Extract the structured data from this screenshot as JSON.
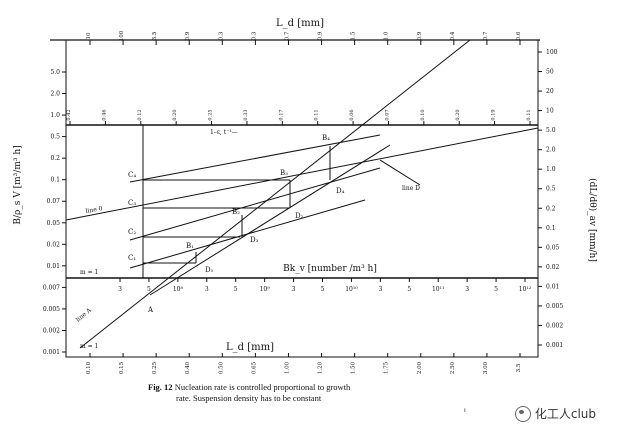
{
  "chart_data": {
    "type": "line",
    "top_axis": {
      "label": "L_d [mm]",
      "ticks_top": [
        "10",
        "100",
        "3.5",
        "0.9",
        "0.3",
        "0.3",
        "0.7",
        "0.9",
        "1.5",
        "1.0",
        "0.9",
        "0.4",
        "0.7",
        "0.6"
      ],
      "ticks_inner": [
        "0.42",
        "0.46",
        "0.12",
        "0.20",
        "0.25",
        "0.33",
        "0.17",
        "0.11",
        "0.06",
        "0.07",
        "0.10",
        "0.20",
        "0.19",
        "0.11"
      ]
    },
    "bottom_axis": {
      "label": "L_d [mm]",
      "ticks": [
        "0.10",
        "0.15",
        "0.25",
        "0.40",
        "0.50",
        "0.65",
        "1.00",
        "1.20",
        "1.50",
        "1.75",
        "2.00",
        "2.50",
        "3.00",
        "3.5"
      ]
    },
    "middle_axis": {
      "label": "Bk_v [number /m³ h]",
      "ticks": [
        "3",
        "5",
        "10⁸",
        "3",
        "5",
        "10⁹",
        "3",
        "5",
        "10¹⁰",
        "3",
        "5",
        "10¹¹",
        "3",
        "5",
        "10¹²"
      ]
    },
    "left_axis": {
      "label": "B/ρ_s V [m³/m³ h]",
      "ticks": [
        "5.0",
        "2.0",
        "1.0",
        "0.5",
        "0.2",
        "0.1",
        "0.07",
        "0.05",
        "0.02",
        "0.01",
        "0.007",
        "0.005",
        "0.002",
        "0.001"
      ]
    },
    "right_axis": {
      "label": "(dL/dθ)_av [mm/h]",
      "ticks_outer": [
        "100",
        "50",
        "20",
        "10",
        "5.0",
        "2.0",
        "1.0",
        "0.5",
        "0.2",
        "0.1",
        "0.05",
        "0.02",
        "0.01",
        "0.005",
        "0.002",
        "0.001"
      ]
    },
    "point_labels": [
      "B₄",
      "B₃",
      "B₂",
      "B₁",
      "C₄",
      "C₃",
      "C₂",
      "C₁",
      "D₁",
      "D₂",
      "D₃",
      "D₄",
      "A"
    ],
    "line_labels": [
      "line D",
      "line 0",
      "line A",
      "m = 1",
      "m = 1",
      "1–ε, t⁻¹—"
    ],
    "series": [
      {
        "name": "line A",
        "x": [
          0.1,
          3.5
        ],
        "y": [
          0.001,
          5.0
        ]
      },
      {
        "name": "B",
        "x": [
          0.25,
          0.55,
          1.0,
          2.2
        ],
        "y": [
          0.005,
          0.02,
          0.07,
          0.2
        ]
      },
      {
        "name": "C",
        "x": [
          0.27,
          0.27,
          0.27,
          0.27
        ],
        "y": [
          0.005,
          0.02,
          0.07,
          0.2
        ]
      },
      {
        "name": "D",
        "x": [
          0.42,
          1.0,
          2.0,
          3.5
        ],
        "y": [
          0.005,
          0.02,
          0.07,
          0.2
        ]
      }
    ]
  },
  "caption": {
    "number": "Fig. 12",
    "line1": "Nucleation rate is controlled proportional to growth",
    "line2": "rate. Suspension density has to be constant"
  },
  "watermark": {
    "text": "化工人club"
  },
  "stray_mark": "ᵢ"
}
